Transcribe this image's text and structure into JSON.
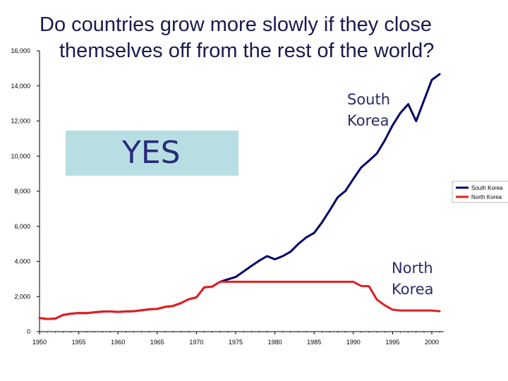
{
  "title": {
    "line1": "Do countries grow more slowly if they close",
    "line2": "themselves off from the rest of the world?"
  },
  "callout": {
    "text": "YES",
    "color": "#b7dfe3"
  },
  "annotations": {
    "south_line1": "South",
    "south_line2": "Korea",
    "north_line1": "North",
    "north_line2": "Korea"
  },
  "chart_data": {
    "type": "line",
    "title": "Do countries grow more slowly if they close themselves off from the rest of the world?",
    "xlabel": "",
    "ylabel": "",
    "xlim": [
      1950,
      2001
    ],
    "ylim": [
      0,
      16000
    ],
    "yticks": [
      0,
      2000,
      4000,
      6000,
      8000,
      10000,
      12000,
      14000,
      16000
    ],
    "ytick_labels": [
      "0",
      "2,000",
      "4,000",
      "6,000",
      "8,000",
      "10,000",
      "12,000",
      "14,000",
      "16,000"
    ],
    "xticks": [
      1950,
      1955,
      1960,
      1965,
      1970,
      1975,
      1980,
      1985,
      1990,
      1995,
      2000
    ],
    "xtick_labels": [
      "1950",
      "1955",
      "1960",
      "1965",
      "1970",
      "1975",
      "1980",
      "1985",
      "1990",
      "1995",
      "2000"
    ],
    "grid": false,
    "legend_position": "right",
    "series": [
      {
        "name": "South Korea",
        "color": "#000066",
        "points": [
          [
            1950,
            770
          ],
          [
            1951,
            720
          ],
          [
            1952,
            740
          ],
          [
            1953,
            950
          ],
          [
            1954,
            1020
          ],
          [
            1955,
            1060
          ],
          [
            1956,
            1050
          ],
          [
            1957,
            1100
          ],
          [
            1958,
            1140
          ],
          [
            1959,
            1150
          ],
          [
            1960,
            1120
          ],
          [
            1961,
            1150
          ],
          [
            1962,
            1160
          ],
          [
            1963,
            1220
          ],
          [
            1964,
            1270
          ],
          [
            1965,
            1290
          ],
          [
            1966,
            1410
          ],
          [
            1967,
            1460
          ],
          [
            1968,
            1620
          ],
          [
            1969,
            1840
          ],
          [
            1970,
            1950
          ],
          [
            1971,
            2520
          ],
          [
            1972,
            2560
          ],
          [
            1973,
            2840
          ],
          [
            1974,
            2980
          ],
          [
            1975,
            3110
          ],
          [
            1976,
            3420
          ],
          [
            1977,
            3740
          ],
          [
            1978,
            4040
          ],
          [
            1979,
            4300
          ],
          [
            1980,
            4120
          ],
          [
            1981,
            4300
          ],
          [
            1982,
            4550
          ],
          [
            1983,
            5000
          ],
          [
            1984,
            5370
          ],
          [
            1985,
            5620
          ],
          [
            1986,
            6220
          ],
          [
            1987,
            6920
          ],
          [
            1988,
            7650
          ],
          [
            1989,
            8020
          ],
          [
            1990,
            8700
          ],
          [
            1991,
            9350
          ],
          [
            1992,
            9740
          ],
          [
            1993,
            10150
          ],
          [
            1994,
            10890
          ],
          [
            1995,
            11750
          ],
          [
            1996,
            12460
          ],
          [
            1997,
            12960
          ],
          [
            1998,
            11990
          ],
          [
            1999,
            13170
          ],
          [
            2000,
            14340
          ],
          [
            2001,
            14670
          ]
        ]
      },
      {
        "name": "North Korea",
        "color": "#e02020",
        "points": [
          [
            1950,
            770
          ],
          [
            1951,
            720
          ],
          [
            1952,
            740
          ],
          [
            1953,
            950
          ],
          [
            1954,
            1020
          ],
          [
            1955,
            1060
          ],
          [
            1956,
            1050
          ],
          [
            1957,
            1100
          ],
          [
            1958,
            1140
          ],
          [
            1959,
            1150
          ],
          [
            1960,
            1120
          ],
          [
            1961,
            1150
          ],
          [
            1962,
            1160
          ],
          [
            1963,
            1220
          ],
          [
            1964,
            1270
          ],
          [
            1965,
            1290
          ],
          [
            1966,
            1410
          ],
          [
            1967,
            1460
          ],
          [
            1968,
            1620
          ],
          [
            1969,
            1840
          ],
          [
            1970,
            1950
          ],
          [
            1971,
            2520
          ],
          [
            1972,
            2560
          ],
          [
            1973,
            2840
          ],
          [
            1974,
            2840
          ],
          [
            1975,
            2840
          ],
          [
            1976,
            2840
          ],
          [
            1977,
            2840
          ],
          [
            1978,
            2840
          ],
          [
            1979,
            2840
          ],
          [
            1980,
            2840
          ],
          [
            1981,
            2840
          ],
          [
            1982,
            2840
          ],
          [
            1983,
            2840
          ],
          [
            1984,
            2840
          ],
          [
            1985,
            2840
          ],
          [
            1986,
            2840
          ],
          [
            1987,
            2840
          ],
          [
            1988,
            2840
          ],
          [
            1989,
            2840
          ],
          [
            1990,
            2840
          ],
          [
            1991,
            2600
          ],
          [
            1992,
            2580
          ],
          [
            1993,
            1820
          ],
          [
            1994,
            1500
          ],
          [
            1995,
            1250
          ],
          [
            1996,
            1200
          ],
          [
            1997,
            1200
          ],
          [
            1998,
            1200
          ],
          [
            1999,
            1200
          ],
          [
            2000,
            1200
          ],
          [
            2001,
            1160
          ]
        ]
      }
    ]
  }
}
